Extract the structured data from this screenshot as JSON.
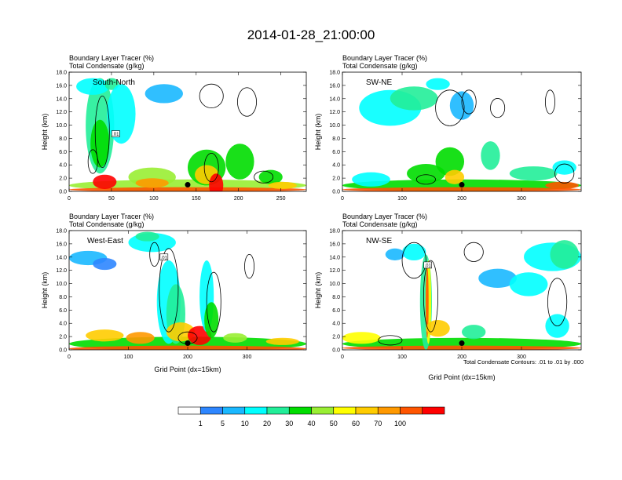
{
  "title": "2014-01-28_21:00:00",
  "footnote": "Total Condensate Contours: .01 to .01 by .000",
  "colorbar": {
    "labels": [
      "1",
      "5",
      "10",
      "20",
      "30",
      "40",
      "50",
      "60",
      "70",
      "100"
    ],
    "colors": [
      "#ffffff",
      "#2e86ff",
      "#1ab8ff",
      "#00ffff",
      "#22ee99",
      "#00dd00",
      "#99ee33",
      "#ffff00",
      "#ffcc00",
      "#ff9900",
      "#ff5500",
      "#ff0000"
    ]
  },
  "chart_data": [
    {
      "type": "heatmap",
      "subtitle_line1": "Boundary Layer Tracer   (%)",
      "subtitle_line2": "Total Condensate   (g/kg)",
      "inset_label": "South-North",
      "xlabel": "",
      "ylabel": "Height (km)",
      "xlim": [
        0,
        280
      ],
      "ylim": [
        0,
        18
      ],
      "xticks": [
        "0",
        "50",
        "100",
        "150",
        "200",
        "250"
      ],
      "yticks": [
        "0.0",
        "2.0",
        "4.0",
        "6.0",
        "8.0",
        "10.0",
        "12.0",
        "14.0",
        "16.0",
        "18.0"
      ],
      "contour_labels": [
        {
          "x": 55,
          "y": 8.7,
          "text": ".01"
        }
      ],
      "marker": {
        "x": 140,
        "y": 1.0
      }
    },
    {
      "type": "heatmap",
      "subtitle_line1": "Boundary Layer Tracer   (%)",
      "subtitle_line2": "Total Condensate   (g/kg)",
      "inset_label": "SW-NE",
      "xlabel": "",
      "ylabel": "Height (km)",
      "xlim": [
        0,
        400
      ],
      "ylim": [
        0,
        18
      ],
      "xticks": [
        "0",
        "100",
        "200",
        "300"
      ],
      "yticks": [
        "0.0",
        "2.0",
        "4.0",
        "6.0",
        "8.0",
        "10.0",
        "12.0",
        "14.0",
        "16.0",
        "18.0"
      ],
      "contour_labels": [],
      "marker": {
        "x": 200,
        "y": 1.0
      }
    },
    {
      "type": "heatmap",
      "subtitle_line1": "Boundary Layer Tracer   (%)",
      "subtitle_line2": "Total Condensate   (g/kg)",
      "inset_label": "West-East",
      "xlabel": "Grid Point (dx=15km)",
      "ylabel": "Height (km)",
      "xlim": [
        0,
        400
      ],
      "ylim": [
        0,
        18
      ],
      "xticks": [
        "0",
        "100",
        "200",
        "300"
      ],
      "yticks": [
        "0.0",
        "2.0",
        "4.0",
        "6.0",
        "8.0",
        "10.0",
        "12.0",
        "14.0",
        "16.0",
        "18.0"
      ],
      "contour_labels": [
        {
          "x": 160,
          "y": 14.0,
          "text": ".01"
        }
      ],
      "marker": {
        "x": 200,
        "y": 1.0
      }
    },
    {
      "type": "heatmap",
      "subtitle_line1": "Boundary Layer Tracer   (%)",
      "subtitle_line2": "Total Condensate   (g/kg)",
      "inset_label": "NW-SE",
      "xlabel": "Grid Point (dx=15km)",
      "ylabel": "Height (km)",
      "xlim": [
        0,
        400
      ],
      "ylim": [
        0,
        18
      ],
      "xticks": [
        "0",
        "100",
        "200",
        "300"
      ],
      "yticks": [
        "0.0",
        "2.0",
        "4.0",
        "6.0",
        "8.0",
        "10.0",
        "12.0",
        "14.0",
        "16.0",
        "18.0"
      ],
      "contour_labels": [
        {
          "x": 143,
          "y": 12.8,
          "text": ".01"
        }
      ],
      "marker": {
        "x": 200,
        "y": 1.0
      }
    }
  ]
}
